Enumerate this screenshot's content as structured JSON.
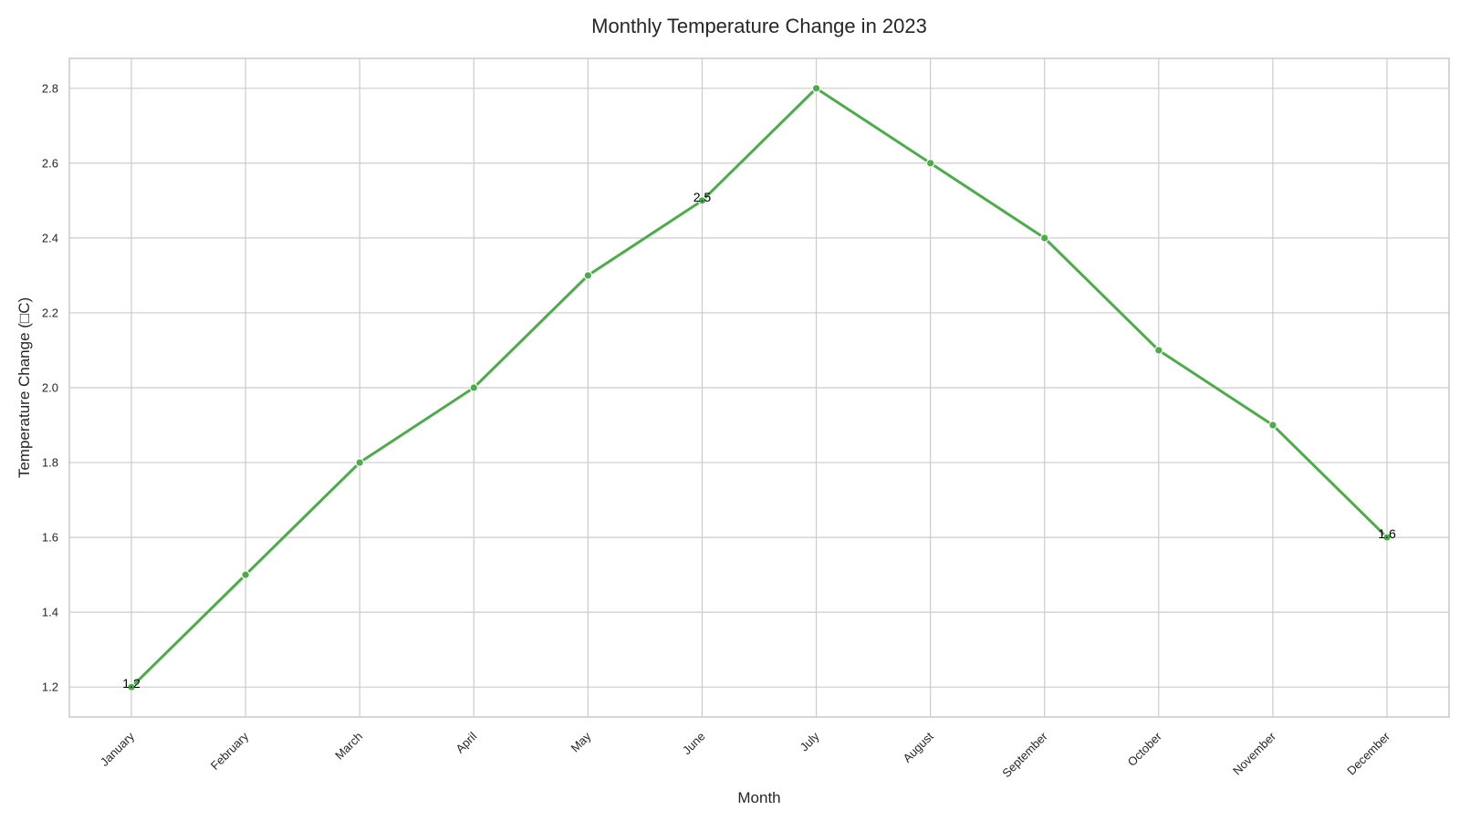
{
  "chart_data": {
    "type": "line",
    "title": "Monthly Temperature Change in 2023",
    "xlabel": "Month",
    "ylabel": "Temperature Change (□C)",
    "categories": [
      "January",
      "February",
      "March",
      "April",
      "May",
      "June",
      "July",
      "August",
      "September",
      "October",
      "November",
      "December"
    ],
    "series": [
      {
        "values": [
          1.2,
          1.5,
          1.8,
          2.0,
          2.3,
          2.5,
          2.8,
          2.6,
          2.4,
          2.1,
          1.9,
          1.6
        ],
        "color": "#4aad48"
      }
    ],
    "yticks": [
      "1.2",
      "1.4",
      "1.6",
      "1.8",
      "2.0",
      "2.2",
      "2.4",
      "2.6",
      "2.8"
    ],
    "ylim": [
      1.12,
      2.88
    ],
    "grid": true,
    "annotations": [
      {
        "category": "January",
        "value": 1.2,
        "text": "1.2"
      },
      {
        "category": "June",
        "value": 2.5,
        "text": "2.5"
      },
      {
        "category": "December",
        "value": 1.6,
        "text": "1.6"
      }
    ]
  }
}
